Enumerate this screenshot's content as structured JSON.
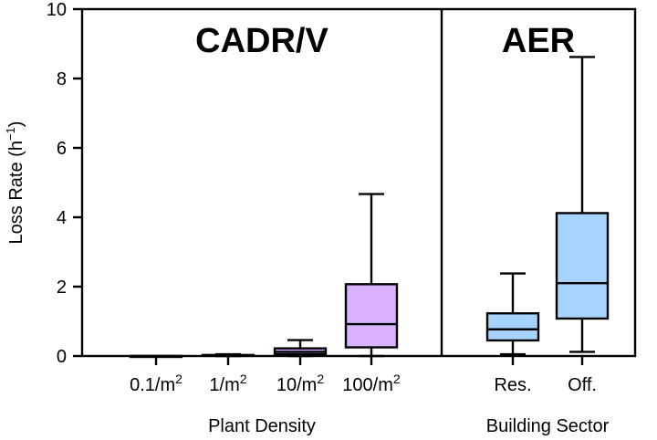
{
  "chart_data": {
    "type": "box",
    "ylabel": "Loss Rate (h",
    "ylabel_sup": "−1",
    "ylabel_close": ")",
    "ylim": [
      0,
      10
    ],
    "yticks": [
      0,
      2,
      4,
      6,
      8,
      10
    ],
    "panels": [
      {
        "title": "CADR/V",
        "xlabel": "Plant Density",
        "boxes": [
          {
            "label": "0.1/m",
            "sup": "2",
            "min": 0.0,
            "q1": 0.0,
            "median": 0.0,
            "q3": 0.0,
            "max": 0.0,
            "color": "#d9b3ff"
          },
          {
            "label": "1/m",
            "sup": "2",
            "min": 0.0,
            "q1": 0.01,
            "median": 0.02,
            "q3": 0.03,
            "max": 0.05,
            "color": "#d9b3ff"
          },
          {
            "label": "10/m",
            "sup": "2",
            "min": 0.0,
            "q1": 0.05,
            "median": 0.12,
            "q3": 0.22,
            "max": 0.46,
            "color": "#d9b3ff"
          },
          {
            "label": "100/m",
            "sup": "2",
            "min": 0.0,
            "q1": 0.25,
            "median": 0.92,
            "q3": 2.07,
            "max": 4.67,
            "color": "#d9b3ff"
          }
        ]
      },
      {
        "title": "AER",
        "xlabel": "Building Sector",
        "boxes": [
          {
            "label": "Res.",
            "sup": "",
            "min": 0.05,
            "q1": 0.45,
            "median": 0.77,
            "q3": 1.23,
            "max": 2.38,
            "color": "#a6d4ff"
          },
          {
            "label": "Off.",
            "sup": "",
            "min": 0.12,
            "q1": 1.08,
            "median": 2.1,
            "q3": 4.12,
            "max": 8.62,
            "color": "#a6d4ff"
          }
        ]
      }
    ]
  }
}
